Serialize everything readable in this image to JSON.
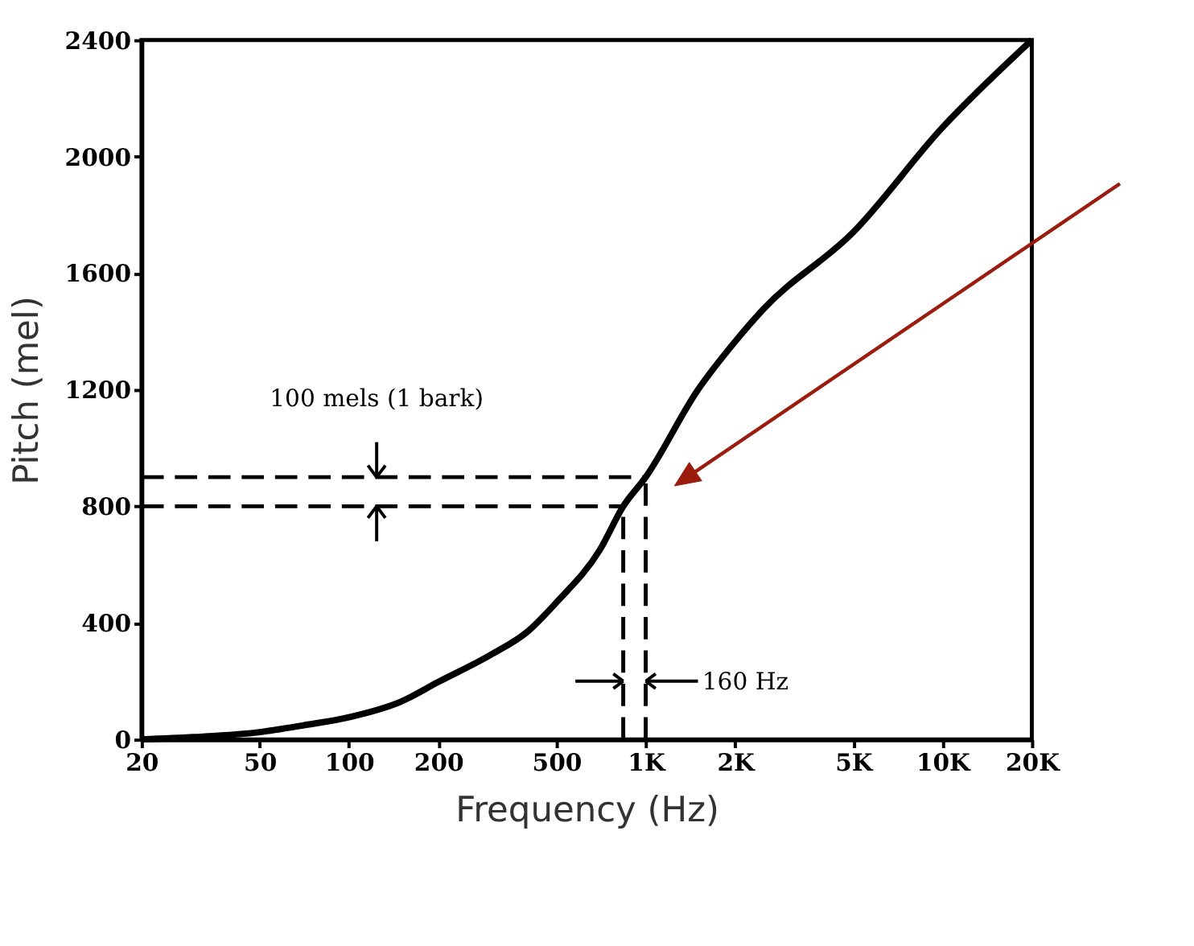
{
  "chart_data": {
    "type": "line",
    "xlabel": "Frequency (Hz)",
    "ylabel": "Pitch (mel)",
    "log": "x",
    "xlim": [
      20,
      20000
    ],
    "ylim": [
      0,
      2400
    ],
    "xticks": [
      20,
      50,
      100,
      200,
      500,
      {
        "value": 1000,
        "label": "1K"
      },
      {
        "value": 2000,
        "label": "2K"
      },
      {
        "value": 5000,
        "label": "5K"
      },
      {
        "value": 10000,
        "label": "10K"
      },
      {
        "value": 20000,
        "label": "20K"
      }
    ],
    "yticks": [
      0,
      400,
      800,
      1200,
      1600,
      2000,
      2400
    ],
    "grid": false,
    "marker": "none",
    "series": [
      {
        "color": "#000000",
        "line_style": "solid",
        "x": [
          20,
          30,
          50,
          70,
          100,
          150,
          200,
          300,
          400,
          500,
          700,
          840,
          1000,
          1500,
          2000,
          2500,
          5000,
          10000,
          20000
        ],
        "values": [
          0,
          8,
          25,
          48,
          76,
          130,
          197,
          290,
          370,
          470,
          650,
          800,
          900,
          1200,
          1365,
          1478,
          1740,
          2100,
          2400
        ]
      },
      {
        "color": "#000000",
        "line_style": "dashed",
        "x": [
          20,
          1000
        ],
        "values": [
          900,
          900
        ]
      },
      {
        "color": "#000000",
        "line_style": "dashed",
        "x": [
          20,
          840
        ],
        "values": [
          800,
          800
        ]
      },
      {
        "color": "#000000",
        "line_style": "dashed",
        "x": [
          1000,
          1000
        ],
        "values": [
          0,
          900
        ]
      },
      {
        "color": "#000000",
        "line_style": "dashed",
        "x": [
          840,
          840
        ],
        "values": [
          0,
          800
        ]
      }
    ],
    "annotations": [
      {
        "text": "100 mels (1 bark)",
        "x": 124,
        "y": 900
      },
      {
        "text": "160 Hz",
        "x": 1000,
        "y": 200
      }
    ]
  }
}
